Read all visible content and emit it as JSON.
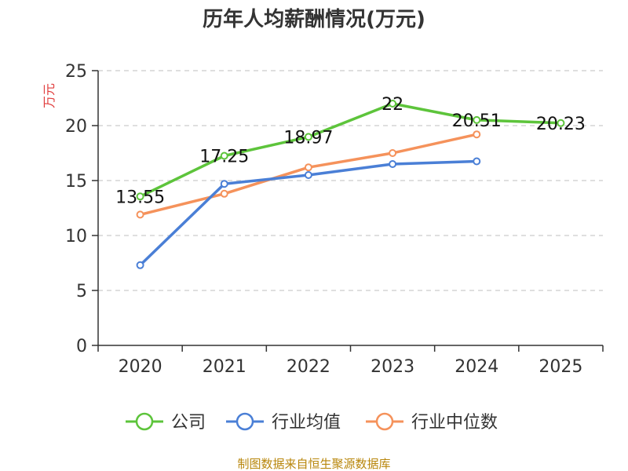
{
  "chart_data": {
    "type": "line",
    "title": "历年人均薪酬情况(万元)",
    "ylabel": "万元",
    "categories": [
      "2020",
      "2021",
      "2022",
      "2023",
      "2024",
      "2025"
    ],
    "y_ticks": [
      "0",
      "5",
      "10",
      "15",
      "20",
      "25"
    ],
    "ylim": [
      0,
      25
    ],
    "grid": true,
    "legend_position": "bottom",
    "series": [
      {
        "name": "公司",
        "color": "#5dc43b",
        "values": [
          13.55,
          17.25,
          18.97,
          22,
          20.51,
          20.23
        ],
        "labels": [
          "13.55",
          "17.25",
          "18.97",
          "22",
          "20.51",
          "20.23"
        ]
      },
      {
        "name": "行业均值",
        "color": "#4a7fd6",
        "values": [
          7.3,
          14.7,
          15.5,
          16.5,
          16.75,
          null
        ]
      },
      {
        "name": "行业中位数",
        "color": "#f5925b",
        "values": [
          11.9,
          13.8,
          16.2,
          17.5,
          19.2,
          null
        ]
      }
    ]
  },
  "source": "制图数据来自恒生聚源数据库"
}
